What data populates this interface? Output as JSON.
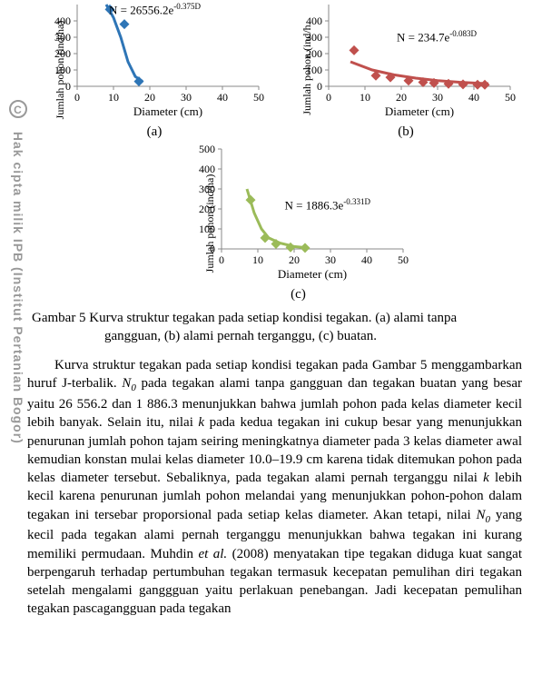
{
  "watermark": {
    "c": "C",
    "text": "Hak cipta milik IPB (Institut Pertanian Bogor)"
  },
  "chart_a": {
    "type": "scatter+curve",
    "color": "#2e75b6",
    "xlabel": "Diameter (cm)",
    "ylabel": "Jumlah pohon (ind/ha)",
    "xlim": [
      0,
      50
    ],
    "xtick_step": 10,
    "ylim": [
      0,
      500
    ],
    "ytick_step": 100,
    "yticks": [
      "0",
      "100",
      "200",
      "300",
      "400"
    ],
    "xticks": [
      "0",
      "10",
      "20",
      "30",
      "40",
      "50"
    ],
    "equation_html": "N = 26556.2e<sup>-0.375D</sup>",
    "points": [
      [
        9,
        470
      ],
      [
        13,
        380
      ],
      [
        17,
        30
      ]
    ],
    "curve": [
      [
        8,
        500
      ],
      [
        10,
        420
      ],
      [
        12,
        300
      ],
      [
        14,
        150
      ],
      [
        16,
        60
      ],
      [
        18,
        30
      ]
    ],
    "line_width": 3,
    "marker_size": 7,
    "label": "(a)"
  },
  "chart_b": {
    "type": "scatter+curve",
    "color": "#c0504d",
    "xlabel": "Diameter (cm)",
    "ylabel": "Jumlah pohon (ind/h",
    "xlim": [
      0,
      50
    ],
    "xtick_step": 10,
    "ylim": [
      0,
      500
    ],
    "ytick_step": 100,
    "yticks": [
      "0",
      "100",
      "200",
      "300",
      "400"
    ],
    "xticks": [
      "0",
      "10",
      "20",
      "30",
      "40",
      "50"
    ],
    "equation_html": "N = 234.7e<sup>-0.083D</sup>",
    "points": [
      [
        7,
        220
      ],
      [
        13,
        65
      ],
      [
        17,
        55
      ],
      [
        22,
        35
      ],
      [
        26,
        25
      ],
      [
        29,
        20
      ],
      [
        33,
        15
      ],
      [
        37,
        12
      ],
      [
        41,
        10
      ],
      [
        43,
        10
      ]
    ],
    "curve": [
      [
        6,
        150
      ],
      [
        12,
        100
      ],
      [
        18,
        70
      ],
      [
        24,
        50
      ],
      [
        30,
        35
      ],
      [
        36,
        25
      ],
      [
        42,
        18
      ],
      [
        44,
        16
      ]
    ],
    "line_width": 3,
    "marker_size": 7,
    "label": "(b)"
  },
  "chart_c": {
    "type": "scatter+curve",
    "color": "#9bbb59",
    "xlabel": "Diameter (cm)",
    "ylabel": "Jumlah pohon (ind/ha)",
    "xlim": [
      0,
      50
    ],
    "xtick_step": 10,
    "ylim": [
      0,
      500
    ],
    "ytick_step": 100,
    "yticks": [
      "0",
      "100",
      "200",
      "300",
      "400",
      "500"
    ],
    "xticks": [
      "0",
      "10",
      "20",
      "30",
      "40",
      "50"
    ],
    "equation_html": "N = 1886.3e<sup>-0.331D</sup>",
    "points": [
      [
        8,
        245
      ],
      [
        12,
        55
      ],
      [
        15,
        25
      ],
      [
        19,
        8
      ],
      [
        23,
        5
      ]
    ],
    "curve": [
      [
        7,
        300
      ],
      [
        9,
        180
      ],
      [
        11,
        100
      ],
      [
        13,
        55
      ],
      [
        16,
        30
      ],
      [
        20,
        12
      ],
      [
        24,
        5
      ]
    ],
    "line_width": 3,
    "marker_size": 7,
    "label": "(c)"
  },
  "caption_line1": "Gambar 5   Kurva struktur tegakan  pada setiap kondisi tegakan. (a) alami tanpa",
  "caption_line2": "gangguan, (b) alami pernah terganggu, (c) buatan.",
  "paragraph": "Kurva struktur tegakan pada setiap kondisi tegakan pada Gambar 5 menggambarkan huruf J-terbalik. <span class=\"ital\">N<span class=\"sub0\">0</span></span> pada tegakan alami tanpa gangguan dan tegakan buatan yang besar yaitu 26 556.2 dan 1 886.3 menunjukkan bahwa jumlah pohon pada kelas diameter kecil lebih banyak. Selain itu, nilai <span class=\"ital\">k</span> pada kedua tegakan ini cukup besar yang menunjukkan penurunan jumlah pohon tajam seiring meningkatnya diameter pada 3 kelas diameter awal kemudian konstan mulai kelas diameter 10.0–19.9 cm karena tidak ditemukan pohon pada kelas diameter tersebut. Sebaliknya, pada tegakan alami pernah terganggu nilai <span class=\"ital\">k</span> lebih kecil karena penurunan jumlah pohon melandai yang menunjukkan pohon-pohon dalam tegakan ini tersebar proporsional pada setiap kelas diameter. Akan tetapi, nilai <span class=\"ital\">N<span class=\"sub0\">0</span></span> yang kecil pada tegakan alami pernah terganggu menunjukkan bahwa tegakan ini kurang memiliki permudaan. Muhdin <span class=\"ital\">et al.</span> (2008) menyatakan tipe tegakan diduga kuat sangat berpengaruh terhadap pertumbuhan tegakan termasuk kecepatan pemulihan diri tegakan setelah mengalami ganggguan yaitu perlakuan penebangan. Jadi kecepatan pemulihan tegakan pascagangguan pada tegakan"
}
